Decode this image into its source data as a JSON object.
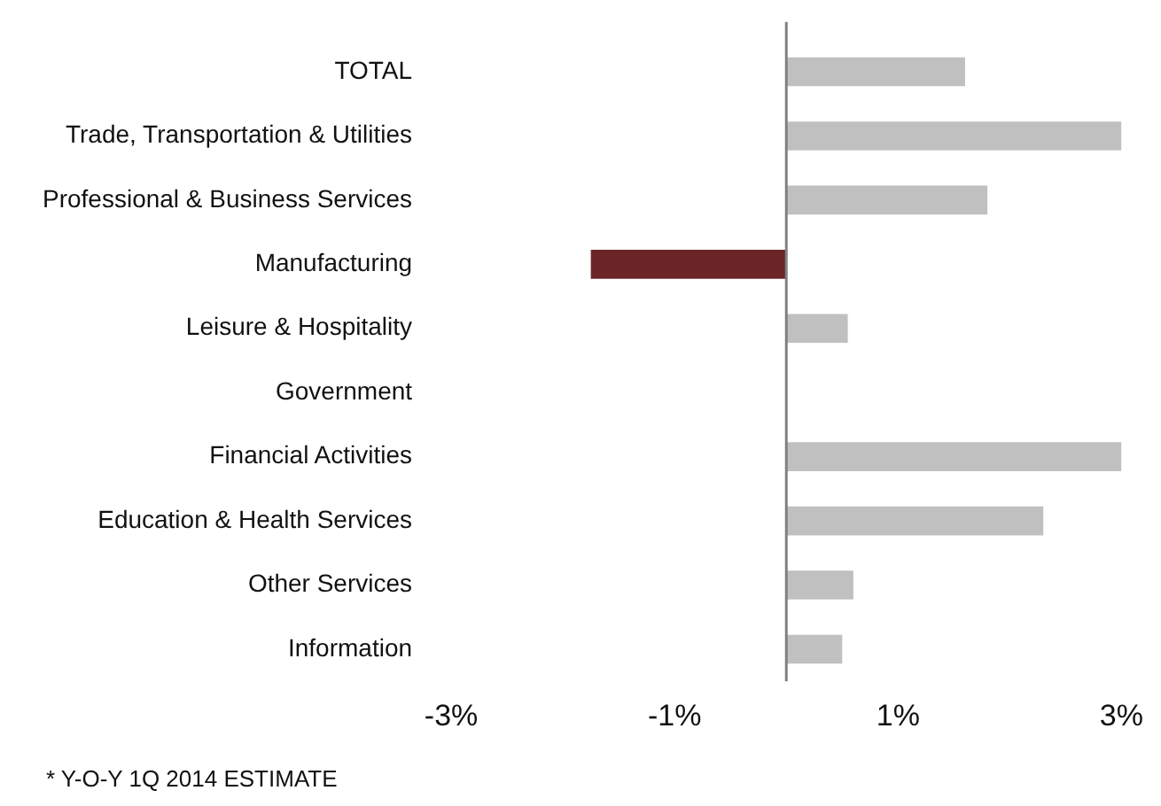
{
  "chart_data": {
    "type": "bar",
    "orientation": "horizontal",
    "categories": [
      "TOTAL",
      "Trade, Transportation & Utilities",
      "Professional & Business Services",
      "Manufacturing",
      "Leisure & Hospitality",
      "Government",
      "Financial Activities",
      "Education & Health Services",
      "Other Services",
      "Information"
    ],
    "values": [
      1.6,
      3.0,
      1.8,
      -1.75,
      0.55,
      0,
      3.0,
      2.3,
      0.6,
      0.5
    ],
    "colors": [
      "#c0c0c0",
      "#c0c0c0",
      "#c0c0c0",
      "#6b2527",
      "#c0c0c0",
      "#c0c0c0",
      "#c0c0c0",
      "#c0c0c0",
      "#c0c0c0",
      "#c0c0c0"
    ],
    "xlim": [
      -3,
      3
    ],
    "xticks": [
      {
        "value": -3,
        "label": "-3%"
      },
      {
        "value": -1,
        "label": "-1%"
      },
      {
        "value": 1,
        "label": "1%"
      },
      {
        "value": 3,
        "label": "3%"
      }
    ],
    "ref_lines": [
      {
        "axis": "x",
        "value": 0,
        "color": "#808080"
      }
    ],
    "grid": false,
    "legend": false,
    "annotations": [
      "* Y-O-Y 1Q 2014 ESTIMATE"
    ]
  }
}
